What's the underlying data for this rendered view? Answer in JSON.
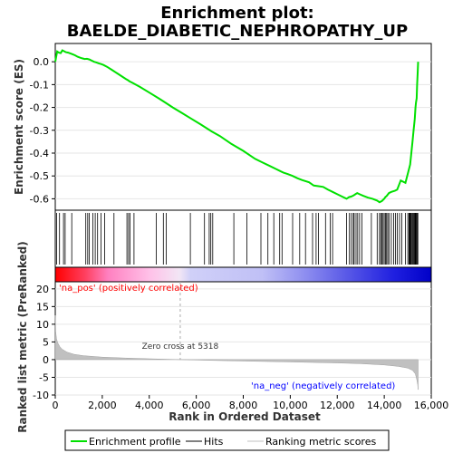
{
  "chart_data": {
    "type": "line",
    "title_line1": "Enrichment plot:",
    "title_line2": "BAELDE_DIABETIC_NEPHROPATHY_UP",
    "top_panel": {
      "ylabel": "Enrichment score (ES)",
      "ylim": [
        -0.65,
        0.08
      ],
      "yticks": [
        0.0,
        -0.1,
        -0.2,
        -0.3,
        -0.4,
        -0.5,
        -0.6
      ],
      "ytick_labels": [
        "0.0",
        "-0.1",
        "-0.2",
        "-0.3",
        "-0.4",
        "-0.5",
        "-0.6"
      ],
      "series": [
        {
          "name": "Enrichment profile",
          "color": "#00e000",
          "x": [
            0,
            80,
            150,
            230,
            300,
            380,
            450,
            550,
            650,
            750,
            850,
            950,
            1050,
            1150,
            1250,
            1350,
            1450,
            1550,
            1650,
            1750,
            1850,
            1950,
            2050,
            2200,
            2400,
            2700,
            3000,
            3100,
            3150,
            3300,
            3600,
            4000,
            4400,
            4700,
            5000,
            5400,
            5800,
            6200,
            6500,
            6650,
            7000,
            7500,
            8000,
            8500,
            8800,
            9100,
            9400,
            9600,
            9700,
            9900,
            10100,
            10300,
            10500,
            10800,
            11000,
            11200,
            11400,
            11600,
            11800,
            12000,
            12200,
            12400,
            12500,
            12600,
            12700,
            12800,
            12850,
            12950,
            13100,
            13300,
            13500,
            13700,
            13800,
            13900,
            14000,
            14050,
            14100,
            14200,
            14300,
            14450,
            14550,
            14700,
            14900,
            15000,
            15100,
            15150,
            15200,
            15250,
            15300,
            15330,
            15350,
            15380,
            15400,
            15420,
            15440
          ],
          "y": [
            0.0,
            0.045,
            0.04,
            0.038,
            0.05,
            0.046,
            0.042,
            0.04,
            0.036,
            0.032,
            0.028,
            0.022,
            0.018,
            0.015,
            0.012,
            0.013,
            0.01,
            0.005,
            0.0,
            -0.003,
            -0.007,
            -0.01,
            -0.014,
            -0.022,
            -0.035,
            -0.055,
            -0.075,
            -0.081,
            -0.085,
            -0.093,
            -0.11,
            -0.135,
            -0.16,
            -0.18,
            -0.2,
            -0.225,
            -0.25,
            -0.275,
            -0.295,
            -0.305,
            -0.325,
            -0.36,
            -0.39,
            -0.425,
            -0.44,
            -0.455,
            -0.47,
            -0.48,
            -0.485,
            -0.492,
            -0.5,
            -0.51,
            -0.518,
            -0.528,
            -0.542,
            -0.545,
            -0.548,
            -0.56,
            -0.57,
            -0.58,
            -0.59,
            -0.6,
            -0.593,
            -0.59,
            -0.585,
            -0.578,
            -0.575,
            -0.58,
            -0.587,
            -0.595,
            -0.6,
            -0.608,
            -0.615,
            -0.61,
            -0.6,
            -0.592,
            -0.588,
            -0.575,
            -0.57,
            -0.565,
            -0.56,
            -0.52,
            -0.53,
            -0.49,
            -0.45,
            -0.4,
            -0.35,
            -0.3,
            -0.25,
            -0.2,
            -0.18,
            -0.16,
            -0.1,
            -0.05,
            0.0
          ]
        }
      ]
    },
    "hits_panel": {
      "hit_positions": [
        60,
        180,
        350,
        420,
        700,
        1300,
        1380,
        1450,
        1600,
        1700,
        1800,
        1950,
        2100,
        2500,
        3050,
        3120,
        3180,
        3350,
        4300,
        4600,
        4720,
        5750,
        6350,
        6550,
        6620,
        6700,
        7600,
        8150,
        8750,
        9050,
        9300,
        9550,
        9650,
        10100,
        10400,
        10650,
        10950,
        11100,
        11200,
        11500,
        11700,
        11800,
        12400,
        12520,
        12600,
        12680,
        12720,
        12800,
        12870,
        12950,
        13050,
        13450,
        13700,
        13800,
        13850,
        13900,
        13950,
        14000,
        14050,
        14100,
        14150,
        14200,
        14300,
        14400,
        14480,
        14550,
        14650,
        14750,
        14900,
        15000,
        15050,
        15080,
        15110,
        15140,
        15180,
        15210,
        15250,
        15280,
        15310,
        15340,
        15370,
        15400,
        15430
      ]
    },
    "bottom_panel": {
      "ylabel": "Ranked list metric (PreRanked)",
      "xlabel": "Rank in Ordered Dataset",
      "ylim": [
        -10,
        22
      ],
      "yticks": [
        -10,
        -5,
        0,
        5,
        10,
        15,
        20
      ],
      "ytick_labels": [
        "-10",
        "-5",
        "0",
        "5",
        "10",
        "15",
        "20"
      ],
      "xlim": [
        0,
        16000
      ],
      "xticks": [
        0,
        2000,
        4000,
        6000,
        8000,
        10000,
        12000,
        14000,
        16000
      ],
      "xtick_labels": [
        "0",
        "2,000",
        "4,000",
        "6,000",
        "8,000",
        "10,000",
        "12,000",
        "14,000",
        "16,000"
      ],
      "metric_x": [
        0,
        20,
        50,
        100,
        200,
        300,
        500,
        800,
        1200,
        2000,
        3000,
        4000,
        5318,
        6500,
        8000,
        10000,
        12000,
        13000,
        14000,
        14600,
        15000,
        15200,
        15320,
        15380,
        15420,
        15440
      ],
      "metric_y": [
        12.5,
        8.0,
        6.0,
        4.8,
        3.6,
        2.9,
        2.1,
        1.5,
        1.1,
        0.7,
        0.45,
        0.25,
        0.0,
        -0.2,
        -0.4,
        -0.65,
        -0.95,
        -1.15,
        -1.5,
        -1.9,
        -2.4,
        -3.0,
        -4.0,
        -5.5,
        -7.0,
        -8.5
      ],
      "zero_cross_label": "Zero cross at 5318",
      "zero_cross_x": 5318,
      "pos_label": "'na_pos' (positively correlated)",
      "neg_label": "'na_neg' (negatively correlated)"
    },
    "legend": {
      "placement": "bottom",
      "items": [
        {
          "label": "Enrichment profile",
          "color": "#00e000"
        },
        {
          "label": "Hits",
          "color": "#000000"
        },
        {
          "label": "Ranking metric scores",
          "color": "#c0c0c0"
        }
      ]
    },
    "colors": {
      "pos_label": "#ff0000",
      "neg_label": "#0000ff",
      "metric_fill": "#c0c0c0",
      "grid": "#e6e6e6"
    }
  }
}
